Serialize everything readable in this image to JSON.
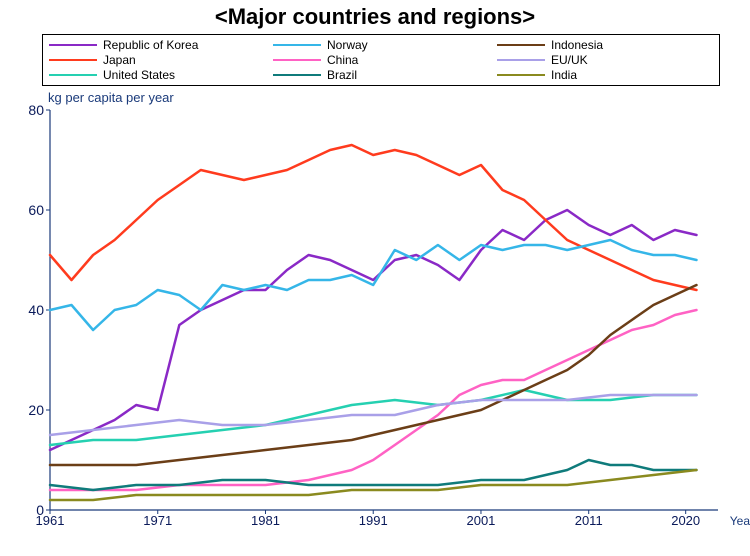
{
  "title": "<Major countries and regions>",
  "chart": {
    "type": "line",
    "ylabel": "kg per capita per year",
    "xlabel": "Year",
    "xlim": [
      1961,
      2023
    ],
    "ylim": [
      0,
      80
    ],
    "yticks": [
      0,
      20,
      40,
      60,
      80
    ],
    "xticks": [
      1961,
      1971,
      1981,
      1991,
      2001,
      2011,
      2020
    ],
    "background_color": "#ffffff",
    "axis_color": "#1a3a7a",
    "line_width": 2.5,
    "title_fontsize": 22,
    "label_fontsize": 13,
    "tick_fontsize": 13,
    "series": [
      {
        "name": "Republic of Korea",
        "color": "#8a29c6",
        "x": [
          1961,
          1963,
          1965,
          1967,
          1969,
          1971,
          1973,
          1975,
          1977,
          1979,
          1981,
          1983,
          1985,
          1987,
          1989,
          1991,
          1993,
          1995,
          1997,
          1999,
          2001,
          2003,
          2005,
          2007,
          2009,
          2011,
          2013,
          2015,
          2017,
          2019,
          2021
        ],
        "y": [
          12,
          14,
          16,
          18,
          21,
          20,
          37,
          40,
          42,
          44,
          44,
          48,
          51,
          50,
          48,
          46,
          50,
          51,
          49,
          46,
          52,
          56,
          54,
          58,
          60,
          57,
          55,
          57,
          54,
          56,
          55
        ]
      },
      {
        "name": "Japan",
        "color": "#ff3b1e",
        "x": [
          1961,
          1963,
          1965,
          1967,
          1969,
          1971,
          1973,
          1975,
          1977,
          1979,
          1981,
          1983,
          1985,
          1987,
          1989,
          1991,
          1993,
          1995,
          1997,
          1999,
          2001,
          2003,
          2005,
          2007,
          2009,
          2011,
          2013,
          2015,
          2017,
          2019,
          2021
        ],
        "y": [
          51,
          46,
          51,
          54,
          58,
          62,
          65,
          68,
          67,
          66,
          67,
          68,
          70,
          72,
          73,
          71,
          72,
          71,
          69,
          67,
          69,
          64,
          62,
          58,
          54,
          52,
          50,
          48,
          46,
          45,
          44
        ]
      },
      {
        "name": "United States",
        "color": "#25d0b1",
        "x": [
          1961,
          1965,
          1969,
          1973,
          1977,
          1981,
          1985,
          1989,
          1993,
          1997,
          2001,
          2005,
          2009,
          2013,
          2017,
          2021
        ],
        "y": [
          13,
          14,
          14,
          15,
          16,
          17,
          19,
          21,
          22,
          21,
          22,
          24,
          22,
          22,
          23,
          23
        ]
      },
      {
        "name": "Norway",
        "color": "#35b6e8",
        "x": [
          1961,
          1963,
          1965,
          1967,
          1969,
          1971,
          1973,
          1975,
          1977,
          1979,
          1981,
          1983,
          1985,
          1987,
          1989,
          1991,
          1993,
          1995,
          1997,
          1999,
          2001,
          2003,
          2005,
          2007,
          2009,
          2011,
          2013,
          2015,
          2017,
          2019,
          2021
        ],
        "y": [
          40,
          41,
          36,
          40,
          41,
          44,
          43,
          40,
          45,
          44,
          45,
          44,
          46,
          46,
          47,
          45,
          52,
          50,
          53,
          50,
          53,
          52,
          53,
          53,
          52,
          53,
          54,
          52,
          51,
          51,
          50
        ]
      },
      {
        "name": "China",
        "color": "#ff62c4",
        "x": [
          1961,
          1965,
          1969,
          1973,
          1977,
          1981,
          1985,
          1989,
          1991,
          1993,
          1995,
          1997,
          1999,
          2001,
          2003,
          2005,
          2007,
          2009,
          2011,
          2013,
          2015,
          2017,
          2019,
          2021
        ],
        "y": [
          4,
          4,
          4,
          5,
          5,
          5,
          6,
          8,
          10,
          13,
          16,
          19,
          23,
          25,
          26,
          26,
          28,
          30,
          32,
          34,
          36,
          37,
          39,
          40
        ]
      },
      {
        "name": "Brazil",
        "color": "#0f7b7b",
        "x": [
          1961,
          1965,
          1969,
          1973,
          1977,
          1981,
          1985,
          1989,
          1993,
          1997,
          2001,
          2005,
          2009,
          2011,
          2013,
          2015,
          2017,
          2019,
          2021
        ],
        "y": [
          5,
          4,
          5,
          5,
          6,
          6,
          5,
          5,
          5,
          5,
          6,
          6,
          8,
          10,
          9,
          9,
          8,
          8,
          8
        ]
      },
      {
        "name": "Indonesia",
        "color": "#6b3e17",
        "x": [
          1961,
          1965,
          1969,
          1973,
          1977,
          1981,
          1985,
          1989,
          1993,
          1997,
          2001,
          2003,
          2005,
          2007,
          2009,
          2011,
          2013,
          2015,
          2017,
          2019,
          2021
        ],
        "y": [
          9,
          9,
          9,
          10,
          11,
          12,
          13,
          14,
          16,
          18,
          20,
          22,
          24,
          26,
          28,
          31,
          35,
          38,
          41,
          43,
          45
        ]
      },
      {
        "name": "EU/UK",
        "color": "#a9a0e8",
        "x": [
          1961,
          1965,
          1969,
          1973,
          1977,
          1981,
          1985,
          1989,
          1993,
          1997,
          2001,
          2005,
          2009,
          2013,
          2017,
          2021
        ],
        "y": [
          15,
          16,
          17,
          18,
          17,
          17,
          18,
          19,
          19,
          21,
          22,
          22,
          22,
          23,
          23,
          23
        ]
      },
      {
        "name": "India",
        "color": "#8a8a1f",
        "x": [
          1961,
          1965,
          1969,
          1973,
          1977,
          1981,
          1985,
          1989,
          1993,
          1997,
          2001,
          2005,
          2009,
          2013,
          2017,
          2021
        ],
        "y": [
          2,
          2,
          3,
          3,
          3,
          3,
          3,
          4,
          4,
          4,
          5,
          5,
          5,
          6,
          7,
          8
        ]
      }
    ],
    "legend_order": [
      "Republic of Korea",
      "Norway",
      "Indonesia",
      "Japan",
      "China",
      "EU/UK",
      "United States",
      "Brazil",
      "India"
    ]
  }
}
